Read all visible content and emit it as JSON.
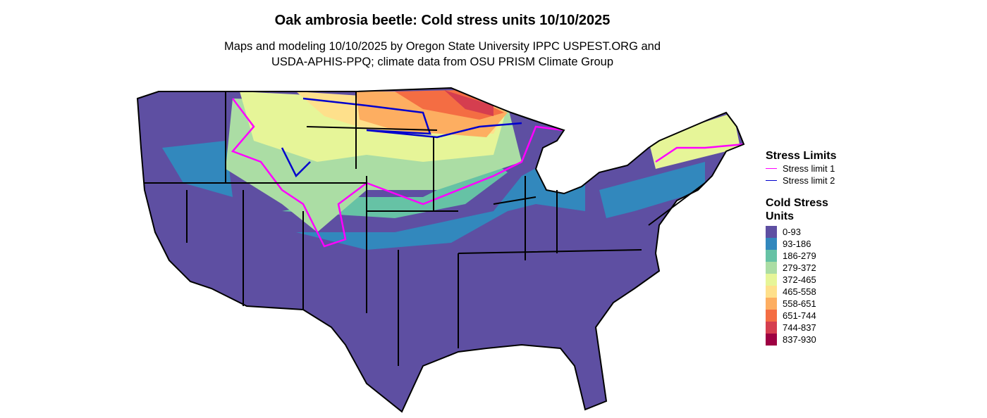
{
  "title": "Oak ambrosia beetle: Cold stress units 10/10/2025",
  "subtitle_lines": [
    "Maps and modeling 10/10/2025 by Oregon State University IPPC USPEST.ORG and",
    "USDA-APHIS-PPQ; climate data from OSU PRISM Climate Group"
  ],
  "legend": {
    "limits": {
      "title": "Stress Limits",
      "items": [
        {
          "label": "Stress limit 1",
          "color": "#ff00ff"
        },
        {
          "label": "Stress limit 2",
          "color": "#0000cd"
        }
      ]
    },
    "units": {
      "title_lines": [
        "Cold Stress",
        "Units"
      ],
      "items": [
        {
          "label": "0-93",
          "color": "#5e4fa2"
        },
        {
          "label": "93-186",
          "color": "#3288bd"
        },
        {
          "label": "186-279",
          "color": "#66c2a5"
        },
        {
          "label": "279-372",
          "color": "#abdda4"
        },
        {
          "label": "372-465",
          "color": "#e6f598"
        },
        {
          "label": "465-558",
          "color": "#fee08b"
        },
        {
          "label": "558-651",
          "color": "#fdae61"
        },
        {
          "label": "651-744",
          "color": "#f46d43"
        },
        {
          "label": "744-837",
          "color": "#d53e4f"
        },
        {
          "label": "837-930",
          "color": "#9e0142"
        }
      ]
    }
  }
}
